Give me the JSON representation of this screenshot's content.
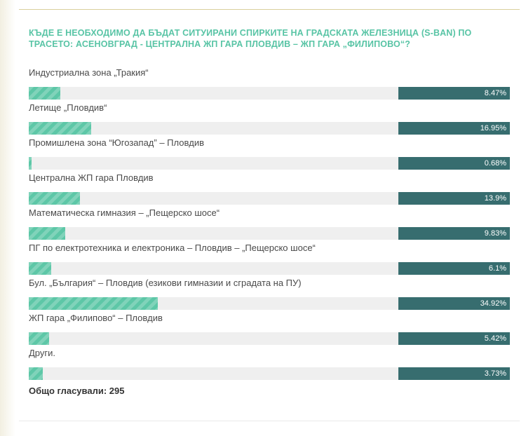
{
  "poll": {
    "question": "Къде е необходимо да бъдат ситуирани спирките на градската железница (S-Ban) по трасето: Асеновград - Централна ЖП гара Пловдив – ЖП гара „Филипово“?",
    "options": [
      {
        "label": "Индустриална зона „Тракия“",
        "percent": 8.47,
        "percent_label": "8.47%"
      },
      {
        "label": "Летище „Пловдив“",
        "percent": 16.95,
        "percent_label": "16.95%"
      },
      {
        "label": "Промишлена зона “Югозапад” – Пловдив",
        "percent": 0.68,
        "percent_label": "0.68%"
      },
      {
        "label": "Централна ЖП гара Пловдив",
        "percent": 13.9,
        "percent_label": "13.9%"
      },
      {
        "label": "Математическа гимназия – „Пещерско шосе“",
        "percent": 9.83,
        "percent_label": "9.83%"
      },
      {
        "label": "ПГ по електротехника и електроника – Пловдив – „Пещерско шосе“",
        "percent": 6.1,
        "percent_label": "6.1%"
      },
      {
        "label": "Бул. „България“ – Пловдив (езикови гимназии и сградата на ПУ)",
        "percent": 34.92,
        "percent_label": "34.92%"
      },
      {
        "label": "ЖП гара „Филипово“ – Пловдив",
        "percent": 5.42,
        "percent_label": "5.42%"
      },
      {
        "label": "Други.",
        "percent": 3.73,
        "percent_label": "3.73%"
      }
    ],
    "total_label": "Общо гласували: 295"
  },
  "colors": {
    "title": "#58c4a5",
    "bar_fill": "#5dc7a7",
    "bar_track": "#efefef",
    "percent_box": "#376d6f"
  }
}
